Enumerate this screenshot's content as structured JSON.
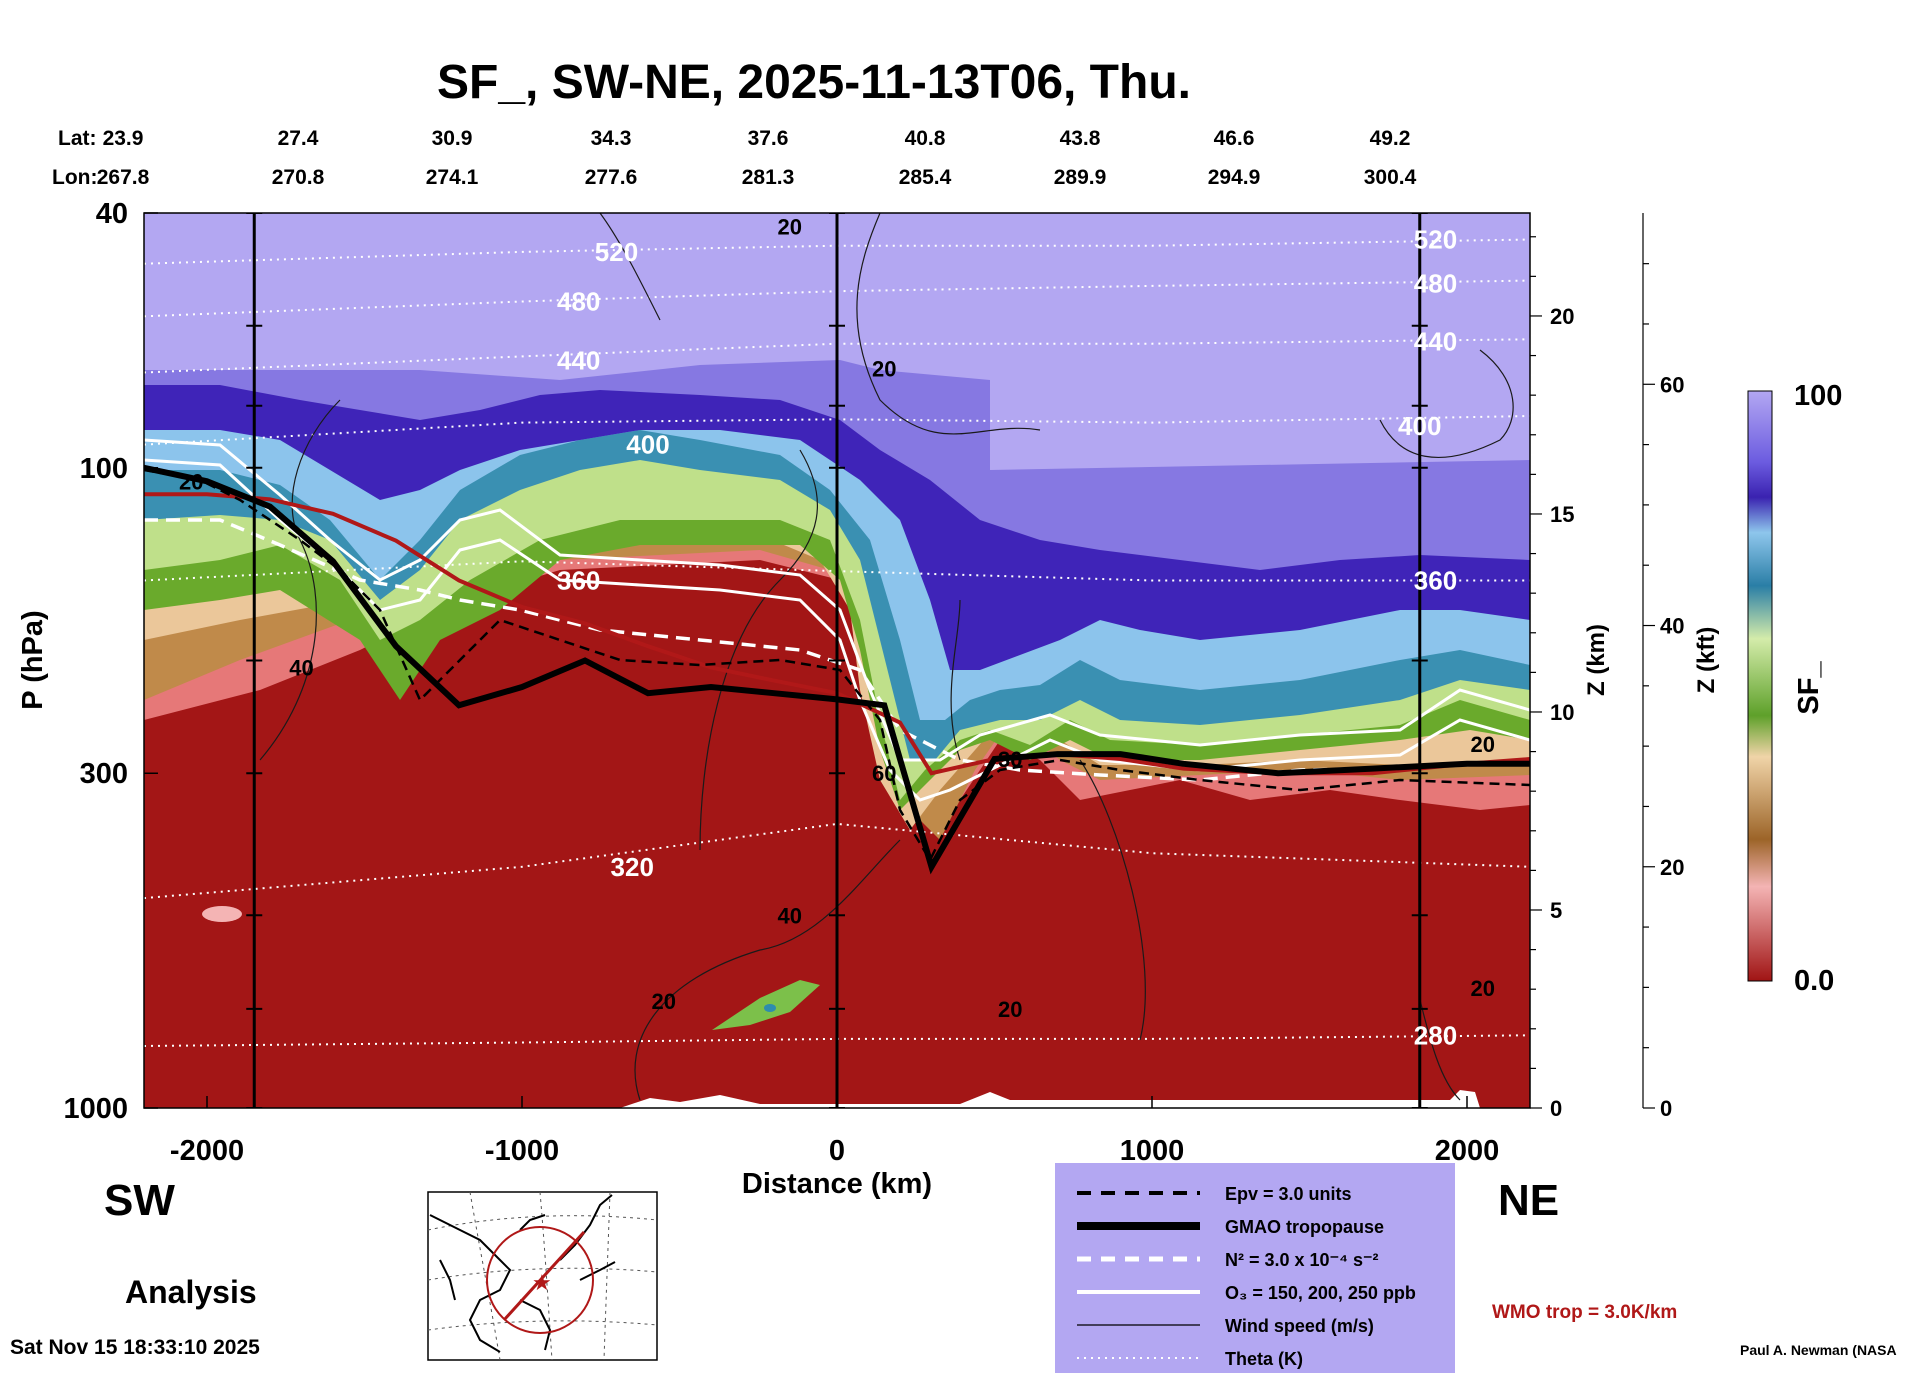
{
  "title": "SF_, SW-NE, 2025-11-13T06, Thu.",
  "lat": {
    "label": "Lat:",
    "values": [
      "23.9",
      "27.4",
      "30.9",
      "34.3",
      "37.6",
      "40.8",
      "43.8",
      "46.6",
      "49.2"
    ]
  },
  "lon": {
    "label": "Lon:",
    "values": [
      "267.8",
      "270.8",
      "274.1",
      "277.6",
      "281.3",
      "285.4",
      "289.9",
      "294.9",
      "300.4"
    ]
  },
  "chart_data": {
    "type": "heatmap",
    "title": "SF_, SW-NE, 2025-11-13T06, Thu.",
    "xlabel": "Distance (km)",
    "ylabel": "P (hPa)",
    "xlim": [
      -2200,
      2200
    ],
    "ylim": [
      1000,
      40
    ],
    "x_ticks": [
      "-2000",
      "-1000",
      "0",
      "1000",
      "2000"
    ],
    "x_tick_values": [
      -2000,
      -1000,
      0,
      1000,
      2000
    ],
    "p_ticks": [
      "40",
      "100",
      "300",
      "1000"
    ],
    "p_tick_values": [
      40,
      100,
      300,
      1000
    ],
    "z_km_label": "Z (km)",
    "z_km_ticks": [
      "0",
      "5",
      "10",
      "15",
      "20"
    ],
    "z_km_values": [
      0,
      5,
      10,
      15,
      20
    ],
    "z_kft_label": "Z (kft)",
    "z_kft_ticks": [
      "0",
      "20",
      "40",
      "60"
    ],
    "z_kft_values": [
      0,
      20,
      40,
      60
    ],
    "colorbar": {
      "label": "SF_",
      "max": "100",
      "min": "0.0"
    },
    "marked_distances_km": [
      -1850,
      0,
      1850
    ],
    "theta_contours_K": [
      {
        "label": "520",
        "xp": [
          [
            -2200,
            48
          ],
          [
            -1000,
            46
          ],
          [
            0,
            45
          ],
          [
            1000,
            45
          ],
          [
            2200,
            44
          ]
        ],
        "labels_at": [
          [
            -700,
            46
          ],
          [
            1900,
            44
          ]
        ]
      },
      {
        "label": "480",
        "xp": [
          [
            -2200,
            58
          ],
          [
            -1000,
            55
          ],
          [
            0,
            53
          ],
          [
            1000,
            52
          ],
          [
            2200,
            51
          ]
        ],
        "labels_at": [
          [
            -820,
            55
          ],
          [
            1900,
            51.5
          ]
        ]
      },
      {
        "label": "440",
        "xp": [
          [
            -2200,
            71
          ],
          [
            -1000,
            67
          ],
          [
            0,
            64
          ],
          [
            1000,
            64
          ],
          [
            2200,
            63
          ]
        ],
        "labels_at": [
          [
            -820,
            68
          ],
          [
            1900,
            63.5
          ]
        ]
      },
      {
        "label": "400",
        "xp": [
          [
            -2200,
            92
          ],
          [
            -1000,
            85
          ],
          [
            0,
            84
          ],
          [
            1000,
            85
          ],
          [
            2200,
            83
          ]
        ],
        "labels_at": [
          [
            -600,
            92
          ],
          [
            1850,
            86
          ]
        ]
      },
      {
        "label": "360",
        "xp": [
          [
            -2200,
            150
          ],
          [
            -1000,
            140
          ],
          [
            0,
            145
          ],
          [
            1000,
            150
          ],
          [
            2200,
            150
          ]
        ],
        "labels_at": [
          [
            -820,
            150
          ],
          [
            1900,
            150
          ]
        ]
      },
      {
        "label": "320",
        "xp": [
          [
            -2200,
            470
          ],
          [
            -1000,
            420
          ],
          [
            0,
            360
          ],
          [
            1000,
            400
          ],
          [
            2200,
            420
          ]
        ],
        "labels_at": [
          [
            -650,
            420
          ]
        ]
      },
      {
        "label": "280",
        "xp": [
          [
            -2200,
            800
          ],
          [
            -1000,
            790
          ],
          [
            0,
            780
          ],
          [
            1000,
            780
          ],
          [
            2200,
            770
          ]
        ],
        "labels_at": [
          [
            1900,
            770
          ]
        ]
      }
    ],
    "wind_labels_ms": [
      {
        "label": "20",
        "x": -2050,
        "p": 105
      },
      {
        "label": "20",
        "x": -150,
        "p": 42
      },
      {
        "label": "20",
        "x": 150,
        "p": 70
      },
      {
        "label": "40",
        "x": -1700,
        "p": 205
      },
      {
        "label": "60",
        "x": 150,
        "p": 300
      },
      {
        "label": "30",
        "x": 550,
        "p": 285
      },
      {
        "label": "40",
        "x": -150,
        "p": 500
      },
      {
        "label": "20",
        "x": -550,
        "p": 680
      },
      {
        "label": "20",
        "x": 550,
        "p": 700
      },
      {
        "label": "20",
        "x": 2050,
        "p": 650
      },
      {
        "label": "20",
        "x": 2050,
        "p": 270
      }
    ],
    "series": [
      {
        "name": "GMAO tropopause",
        "style": "thick black",
        "x": [
          -2200,
          -2000,
          -1800,
          -1600,
          -1400,
          -1200,
          -1000,
          -800,
          -600,
          -400,
          -200,
          0,
          150,
          300,
          500,
          700,
          900,
          1100,
          1400,
          1700,
          2000,
          2200
        ],
        "p_hPa": [
          100,
          105,
          115,
          140,
          190,
          235,
          220,
          200,
          225,
          220,
          225,
          230,
          235,
          420,
          285,
          280,
          280,
          290,
          300,
          295,
          290,
          290
        ]
      },
      {
        "name": "WMO trop = 3.0K/km",
        "style": "dark red",
        "x": [
          -2200,
          -2000,
          -1800,
          -1600,
          -1400,
          -1200,
          -1000,
          -800,
          -600,
          -400,
          -200,
          0,
          200,
          300,
          500,
          700,
          900,
          1100,
          1400,
          1700,
          2000,
          2200
        ],
        "p_hPa": [
          110,
          110,
          112,
          118,
          130,
          150,
          165,
          175,
          190,
          205,
          215,
          225,
          250,
          300,
          285,
          280,
          285,
          295,
          300,
          300,
          290,
          285
        ]
      }
    ],
    "legend": [
      {
        "style": "dashed black",
        "label": "Epv = 3.0 units"
      },
      {
        "style": "thick black",
        "label": "GMAO tropopause"
      },
      {
        "style": "dashed white",
        "label": "N² = 3.0 x 10⁻⁴ s⁻²"
      },
      {
        "style": "solid white",
        "label": "O₃ = 150, 200, 250 ppb"
      },
      {
        "style": "thin black",
        "label": "Wind speed (m/s)"
      },
      {
        "style": "dotted white",
        "label": "Theta (K)"
      }
    ]
  },
  "annotations": {
    "left_dir": "SW",
    "right_dir": "NE",
    "analysis": "Analysis",
    "wmo": "WMO trop = 3.0K/km",
    "timestamp": "Sat Nov 15 18:33:10 2025",
    "credit": "Paul A. Newman (NASA"
  },
  "colors": {
    "stratosphere_top": "#b3a7f2",
    "violet": "#8b7ee6",
    "indigo": "#4632c8",
    "blue": "#78b4e6",
    "teal": "#2e8cae",
    "green": "#64aa2a",
    "lightgreen": "#b4dc78",
    "tan": "#e6bc8c",
    "brown": "#a87030",
    "pink": "#f0a0a0",
    "red": "#a01414",
    "wmo": "#b01818"
  }
}
